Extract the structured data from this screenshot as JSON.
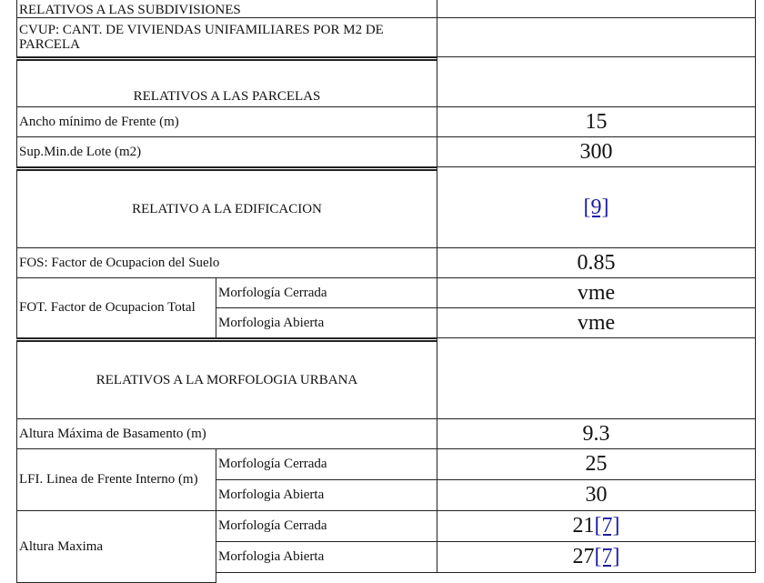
{
  "rows": {
    "subdivisiones": "RELATIVOS A LAS SUBDIVISIONES",
    "cvup": "CVUP: CANT. DE VIVIENDAS UNIFAMILIARES POR M2 DE PARCELA",
    "parcelas": "RELATIVOS A LAS PARCELAS",
    "ancho": "Ancho mínimo de Frente (m)",
    "ancho_val": "15",
    "sup": "Sup.Min.de Lote (m2)",
    "sup_val": "300",
    "edificacion": "RELATIVO A LA EDIFICACION",
    "edificacion_ref": "[9]",
    "fos": "FOS: Factor de Ocupacion del Suelo",
    "fos_val": "0.85",
    "fot": "FOT. Factor de Ocupacion Total",
    "cerrada": "Morfología Cerrada",
    "abierta": "Morfologia Abierta",
    "fot_cerrada_val": "vme",
    "fot_abierta_val": "vme",
    "morfologia": "RELATIVOS A LA MORFOLOGIA URBANA",
    "basamento": "Altura Máxima de Basamento (m)",
    "basamento_val": "9.3",
    "lfi": "LFI. Linea de Frente Interno (m)",
    "lfi_cerrada_val": "25",
    "lfi_abierta_val": "30",
    "altura": "Altura Maxima",
    "altura_cerrada_val": "21",
    "altura_abierta_val": "27",
    "altura_ref": "[7]"
  }
}
